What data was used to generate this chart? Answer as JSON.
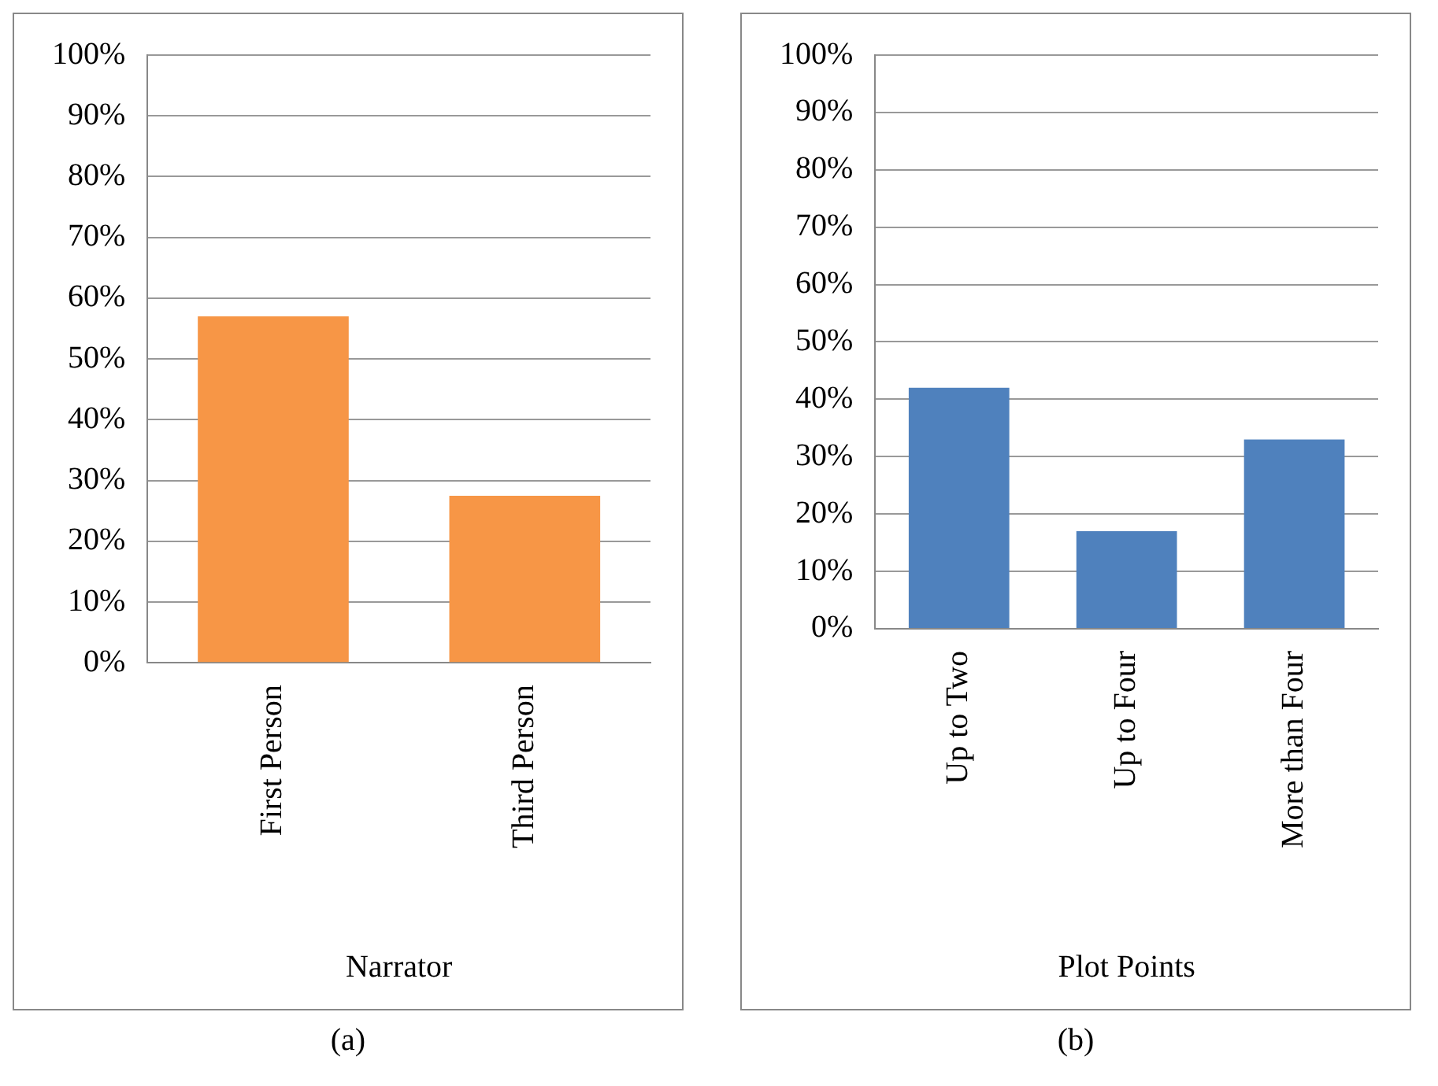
{
  "chart_data": [
    {
      "type": "bar",
      "categories": [
        "First Person",
        "Third Person"
      ],
      "values": [
        57,
        27.5
      ],
      "color": "#f79646",
      "xlabel": "Narrator",
      "ylim": [
        0,
        100
      ],
      "yticks": [
        {
          "value": 0,
          "label": "0%"
        },
        {
          "value": 10,
          "label": "10%"
        },
        {
          "value": 20,
          "label": "20%"
        },
        {
          "value": 30,
          "label": "30%"
        },
        {
          "value": 40,
          "label": "40%"
        },
        {
          "value": 50,
          "label": "50%"
        },
        {
          "value": 60,
          "label": "60%"
        },
        {
          "value": 70,
          "label": "70%"
        },
        {
          "value": 80,
          "label": "80%"
        },
        {
          "value": 90,
          "label": "90%"
        },
        {
          "value": 100,
          "label": "100%"
        }
      ],
      "grid": "y",
      "legend": false,
      "annotations": [
        "(a)"
      ]
    },
    {
      "type": "bar",
      "categories": [
        "Up to Two",
        "Up to Four",
        "More than Four"
      ],
      "values": [
        42,
        17,
        33
      ],
      "color": "#4f81bd",
      "xlabel": "Plot Points",
      "ylim": [
        0,
        100
      ],
      "yticks": [
        {
          "value": 0,
          "label": "0%"
        },
        {
          "value": 10,
          "label": "10%"
        },
        {
          "value": 20,
          "label": "20%"
        },
        {
          "value": 30,
          "label": "30%"
        },
        {
          "value": 40,
          "label": "40%"
        },
        {
          "value": 50,
          "label": "50%"
        },
        {
          "value": 60,
          "label": "60%"
        },
        {
          "value": 70,
          "label": "70%"
        },
        {
          "value": 80,
          "label": "80%"
        },
        {
          "value": 90,
          "label": "90%"
        },
        {
          "value": 100,
          "label": "100%"
        }
      ],
      "grid": "y",
      "legend": false,
      "annotations": [
        "(b)"
      ]
    }
  ]
}
